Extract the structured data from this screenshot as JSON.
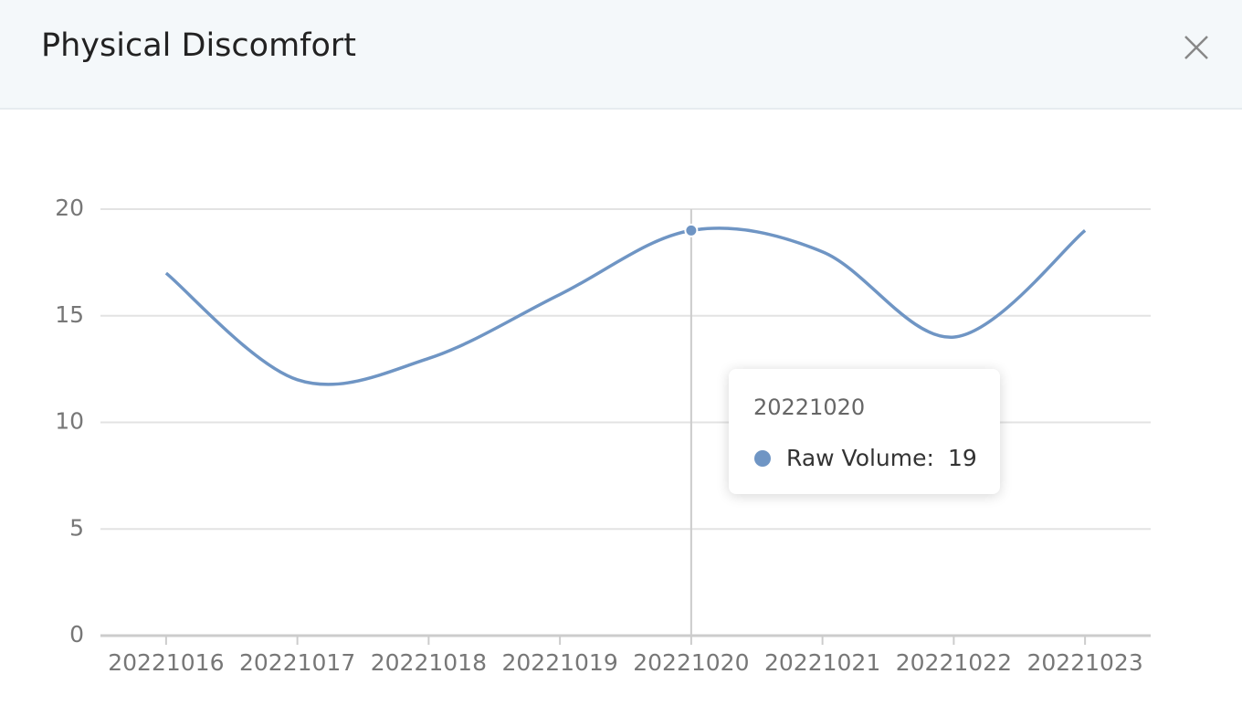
{
  "chart_data": {
    "type": "line",
    "title": "Physical Discomfort",
    "categories": [
      "20221016",
      "20221017",
      "20221018",
      "20221019",
      "20221020",
      "20221021",
      "20221022",
      "20221023"
    ],
    "series": [
      {
        "color": "#6f95c4",
        "values": [
          17,
          12,
          13,
          16,
          19,
          18,
          14,
          19
        ]
      }
    ],
    "ylim": [
      0,
      20
    ],
    "yticks": [
      0,
      5,
      10,
      15,
      20
    ],
    "grid": true,
    "smooth": true,
    "tooltip": {
      "index": 4,
      "series_label": "Raw Volume:"
    }
  }
}
